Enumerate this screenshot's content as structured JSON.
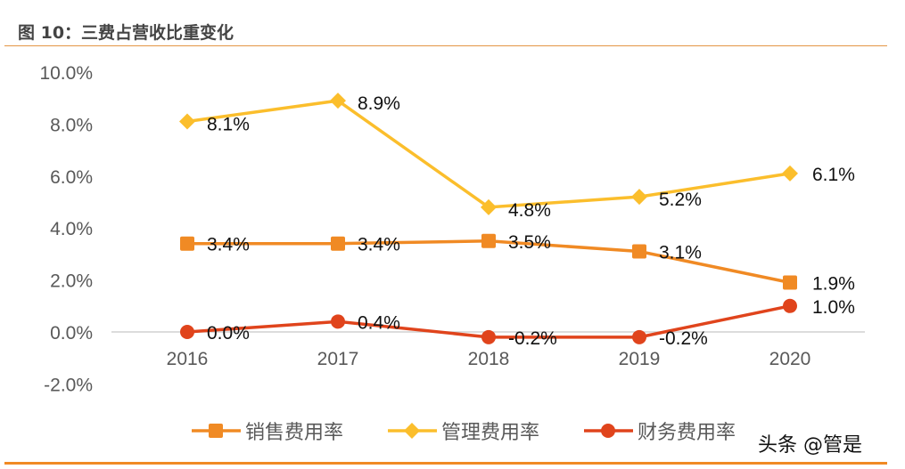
{
  "title": "图 10：三费占营收比重变化",
  "watermark": "头条 @管是",
  "chart_data": {
    "type": "line",
    "title": "",
    "xlabel": "",
    "ylabel": "",
    "categories": [
      "2016",
      "2017",
      "2018",
      "2019",
      "2020"
    ],
    "ylim": [
      -2.0,
      10.0
    ],
    "yticks": [
      "-2.0%",
      "0.0%",
      "2.0%",
      "4.0%",
      "6.0%",
      "8.0%",
      "10.0%"
    ],
    "grid": false,
    "legend_position": "bottom",
    "series": [
      {
        "name": "销售费用率",
        "marker": "square",
        "color": "#f08a24",
        "values": [
          3.4,
          3.4,
          3.5,
          3.1,
          1.9
        ],
        "labels": [
          "3.4%",
          "3.4%",
          "3.5%",
          "3.1%",
          "1.9%"
        ]
      },
      {
        "name": "管理费用率",
        "marker": "diamond",
        "color": "#fbbe2c",
        "values": [
          8.1,
          8.9,
          4.8,
          5.2,
          6.1
        ],
        "labels": [
          "8.1%",
          "8.9%",
          "4.8%",
          "5.2%",
          "6.1%"
        ]
      },
      {
        "name": "财务费用率",
        "marker": "circle",
        "color": "#e0441c",
        "values": [
          0.0,
          0.4,
          -0.2,
          -0.2,
          1.0
        ],
        "labels": [
          "0.0%",
          "0.4%",
          "-0.2%",
          "-0.2%",
          "1.0%"
        ]
      }
    ]
  }
}
